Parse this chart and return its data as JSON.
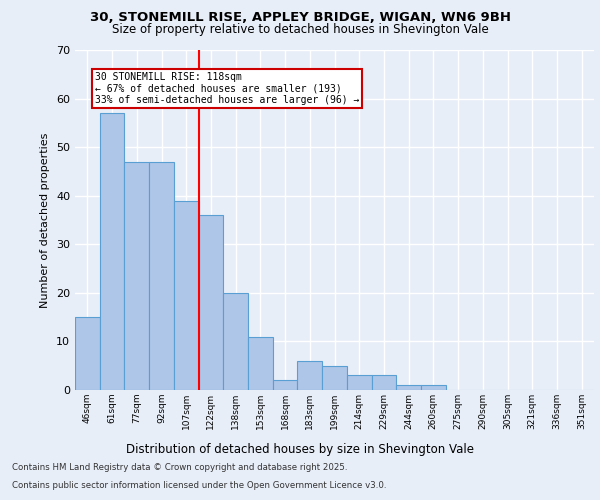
{
  "title_line1": "30, STONEMILL RISE, APPLEY BRIDGE, WIGAN, WN6 9BH",
  "title_line2": "Size of property relative to detached houses in Shevington Vale",
  "xlabel": "Distribution of detached houses by size in Shevington Vale",
  "ylabel": "Number of detached properties",
  "categories": [
    "46sqm",
    "61sqm",
    "77sqm",
    "92sqm",
    "107sqm",
    "122sqm",
    "138sqm",
    "153sqm",
    "168sqm",
    "183sqm",
    "199sqm",
    "214sqm",
    "229sqm",
    "244sqm",
    "260sqm",
    "275sqm",
    "290sqm",
    "305sqm",
    "321sqm",
    "336sqm",
    "351sqm"
  ],
  "values": [
    15,
    57,
    47,
    47,
    39,
    36,
    20,
    11,
    2,
    6,
    5,
    3,
    3,
    1,
    1,
    0,
    0,
    0,
    0,
    0,
    0
  ],
  "bar_color": "#aec6e8",
  "bar_edge_color": "#5a9fd4",
  "background_color": "#e8eef8",
  "grid_color": "#ffffff",
  "annotation_text": "30 STONEMILL RISE: 118sqm\n← 67% of detached houses are smaller (193)\n33% of semi-detached houses are larger (96) →",
  "annotation_box_color": "#ffffff",
  "annotation_box_edge": "#cc0000",
  "ylim": [
    0,
    70
  ],
  "yticks": [
    0,
    10,
    20,
    30,
    40,
    50,
    60,
    70
  ],
  "footer_line1": "Contains HM Land Registry data © Crown copyright and database right 2025.",
  "footer_line2": "Contains public sector information licensed under the Open Government Licence v3.0."
}
